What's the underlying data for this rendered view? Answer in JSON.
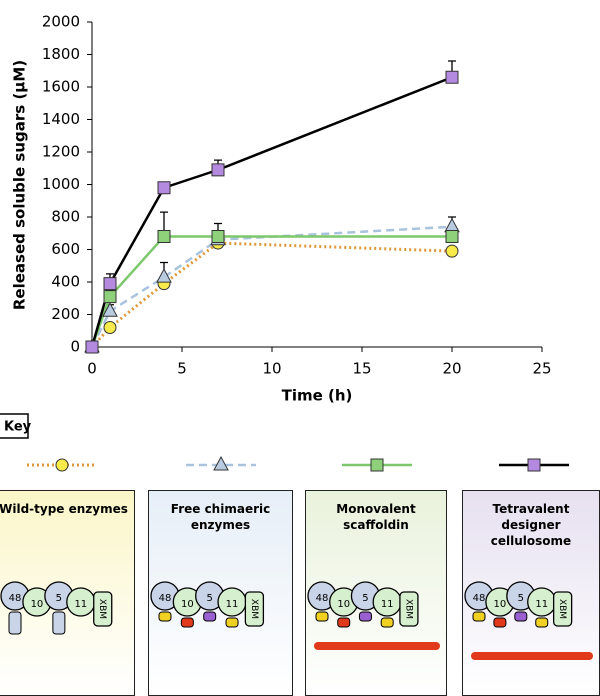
{
  "chart_data": {
    "type": "line",
    "y_label": "Released soluble sugars (μM)",
    "x_label": "Time (h)",
    "x": [
      0,
      1,
      4,
      7,
      20
    ],
    "xlim": [
      0,
      25
    ],
    "xticks": [
      0,
      5,
      10,
      15,
      20,
      25
    ],
    "ylim": [
      0,
      2000
    ],
    "yticks": [
      0,
      200,
      400,
      600,
      800,
      1000,
      1200,
      1400,
      1600,
      1800,
      2000
    ],
    "series": [
      {
        "name": "Wild-type enzymes",
        "color": "#e0993a",
        "marker_color": "#f7ea4a",
        "marker": "circle",
        "dash": "2,3",
        "values": [
          0,
          120,
          390,
          640,
          590
        ],
        "errors": [
          0,
          0,
          0,
          0,
          0
        ]
      },
      {
        "name": "Free chimaeric enzymes",
        "color": "#a9c3df",
        "marker_color": "#b8cbe0",
        "marker": "triangle",
        "dash": "8,5",
        "values": [
          0,
          220,
          430,
          660,
          740
        ],
        "errors": [
          0,
          40,
          90,
          30,
          60
        ]
      },
      {
        "name": "Monovalent scaffoldin",
        "color": "#7dc86c",
        "marker_color": "#8fd07a",
        "marker": "square",
        "dash": "",
        "values": [
          0,
          310,
          680,
          680,
          680
        ],
        "errors": [
          0,
          40,
          150,
          80,
          0
        ]
      },
      {
        "name": "Tetravalent designer cellulosome",
        "color": "#000000",
        "marker_color": "#b48ae0",
        "marker": "square",
        "dash": "",
        "values": [
          0,
          390,
          980,
          1090,
          1660
        ],
        "errors": [
          0,
          60,
          0,
          60,
          100
        ]
      }
    ]
  },
  "key": {
    "title": "Key",
    "panel_colors": [
      "#fbf6c8",
      "#e6eef7",
      "#e9f2dc",
      "#e6e0f0"
    ],
    "modules": [
      [
        "48",
        "10",
        "5",
        "11",
        "XBM"
      ],
      [
        "48",
        "10",
        "5",
        "11",
        "XBM"
      ],
      [
        "48",
        "10",
        "5",
        "11",
        "XBM"
      ],
      [
        "48",
        "10",
        "5",
        "11",
        "XBM"
      ]
    ]
  }
}
